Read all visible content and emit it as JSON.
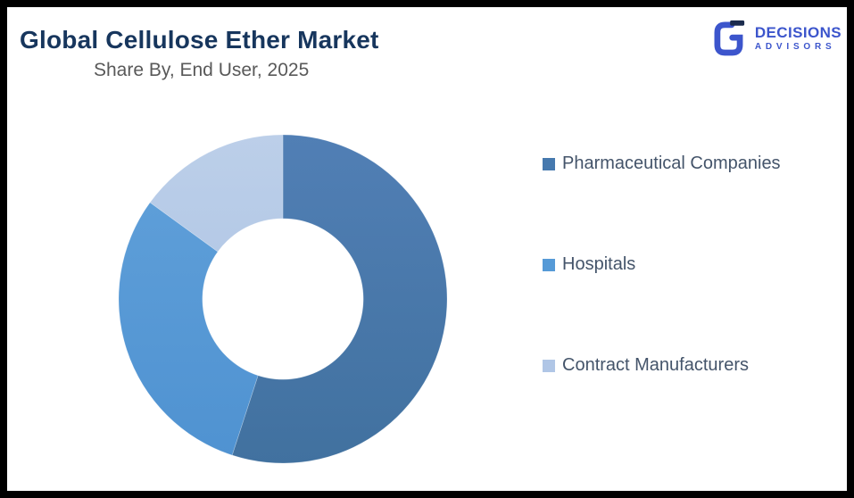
{
  "header": {
    "title": "Global Cellulose Ether Market",
    "subtitle": "Share By, End User, 2025"
  },
  "logo": {
    "name": "DECISIONS",
    "tagline": "ADVISORS",
    "brand_color": "#3c55cc",
    "mark_dark_color": "#1b2b4d"
  },
  "chart_data": {
    "type": "pie",
    "donut": true,
    "title": "Global Cellulose Ether Market",
    "subtitle": "Share By, End User, 2025",
    "start_angle_deg": 0,
    "direction": "clockwise",
    "categories": [
      "Pharmaceutical Companies",
      "Hospitals",
      "Contract Manufacturers"
    ],
    "values": [
      55,
      30,
      15
    ],
    "unit": "%",
    "colors": [
      "#4679ae",
      "#569ad7",
      "#b0c6e6"
    ],
    "gradient_top_colors": [
      "#517fb5",
      "#61a1da",
      "#bccfe9"
    ],
    "gradient_bottom_colors": [
      "#41719f",
      "#4f92d1",
      "#a8c0e2"
    ],
    "inner_radius_ratio": 0.49,
    "legend_position": "right",
    "data_labels_shown": false,
    "background": "#ffffff"
  },
  "frame": {
    "border_color": "#000000"
  }
}
